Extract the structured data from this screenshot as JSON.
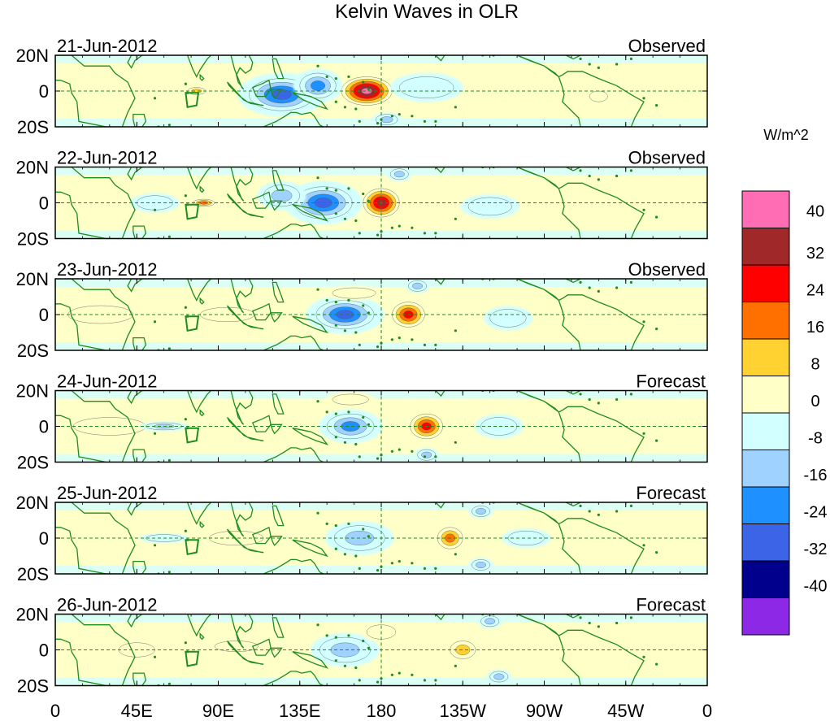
{
  "title": "Kelvin Waves in OLR",
  "units": "W/m^2",
  "panels": [
    {
      "date": "21-Jun-2012",
      "status": "Observed",
      "anomalies": [
        {
          "lon": 172,
          "lat": 0,
          "value": 44,
          "rx": 14,
          "ry": 8
        },
        {
          "lon": 125,
          "lat": -2,
          "value": -28,
          "rx": 18,
          "ry": 9
        },
        {
          "lon": 145,
          "lat": 3,
          "value": -20,
          "rx": 10,
          "ry": 7
        },
        {
          "lon": 78,
          "lat": 0,
          "value": 18,
          "rx": 5,
          "ry": 2
        },
        {
          "lon": 183,
          "lat": -16,
          "value": -18,
          "rx": 6,
          "ry": 3
        },
        {
          "lon": 205,
          "lat": 2,
          "value": -10,
          "rx": 15,
          "ry": 6
        },
        {
          "lon": 300,
          "lat": -3,
          "value": 10,
          "rx": 5,
          "ry": 3
        }
      ]
    },
    {
      "date": "22-Jun-2012",
      "status": "Observed",
      "anomalies": [
        {
          "lon": 180,
          "lat": 0,
          "value": 38,
          "rx": 10,
          "ry": 8
        },
        {
          "lon": 148,
          "lat": 0,
          "value": -34,
          "rx": 16,
          "ry": 9
        },
        {
          "lon": 125,
          "lat": 4,
          "value": -18,
          "rx": 10,
          "ry": 6
        },
        {
          "lon": 82,
          "lat": 0,
          "value": 20,
          "rx": 6,
          "ry": 2
        },
        {
          "lon": 190,
          "lat": 16,
          "value": -18,
          "rx": 5,
          "ry": 3
        },
        {
          "lon": 240,
          "lat": -2,
          "value": -10,
          "rx": 12,
          "ry": 5
        },
        {
          "lon": 55,
          "lat": 0,
          "value": -8,
          "rx": 10,
          "ry": 4
        }
      ]
    },
    {
      "date": "23-Jun-2012",
      "status": "Observed",
      "anomalies": [
        {
          "lon": 195,
          "lat": 0,
          "value": 34,
          "rx": 9,
          "ry": 7
        },
        {
          "lon": 160,
          "lat": 0,
          "value": -30,
          "rx": 16,
          "ry": 8
        },
        {
          "lon": 25,
          "lat": 0,
          "value": 10,
          "rx": 18,
          "ry": 5
        },
        {
          "lon": 95,
          "lat": 0,
          "value": 8,
          "rx": 15,
          "ry": 4
        },
        {
          "lon": 200,
          "lat": 16,
          "value": -18,
          "rx": 5,
          "ry": 3
        },
        {
          "lon": 250,
          "lat": -2,
          "value": -10,
          "rx": 10,
          "ry": 5
        },
        {
          "lon": 165,
          "lat": 12,
          "value": 10,
          "rx": 12,
          "ry": 3
        }
      ]
    },
    {
      "date": "24-Jun-2012",
      "status": "Forecast",
      "anomalies": [
        {
          "lon": 205,
          "lat": 0,
          "value": 28,
          "rx": 9,
          "ry": 7
        },
        {
          "lon": 163,
          "lat": 0,
          "value": -24,
          "rx": 13,
          "ry": 7
        },
        {
          "lon": 30,
          "lat": 0,
          "value": 10,
          "rx": 20,
          "ry": 5
        },
        {
          "lon": 60,
          "lat": 0,
          "value": -12,
          "rx": 10,
          "ry": 2
        },
        {
          "lon": 163,
          "lat": 15,
          "value": 10,
          "rx": 10,
          "ry": 3
        },
        {
          "lon": 205,
          "lat": -16,
          "value": -18,
          "rx": 5,
          "ry": 3
        },
        {
          "lon": 245,
          "lat": 0,
          "value": -10,
          "rx": 10,
          "ry": 5
        }
      ]
    },
    {
      "date": "25-Jun-2012",
      "status": "Forecast",
      "anomalies": [
        {
          "lon": 218,
          "lat": 0,
          "value": 22,
          "rx": 7,
          "ry": 6
        },
        {
          "lon": 168,
          "lat": 0,
          "value": -18,
          "rx": 14,
          "ry": 7
        },
        {
          "lon": 235,
          "lat": 15,
          "value": -18,
          "rx": 5,
          "ry": 3
        },
        {
          "lon": 235,
          "lat": -15,
          "value": -18,
          "rx": 5,
          "ry": 3
        },
        {
          "lon": 100,
          "lat": 0,
          "value": 8,
          "rx": 15,
          "ry": 4
        },
        {
          "lon": 60,
          "lat": 0,
          "value": -10,
          "rx": 10,
          "ry": 2
        },
        {
          "lon": 260,
          "lat": 0,
          "value": -9,
          "rx": 10,
          "ry": 4
        }
      ]
    },
    {
      "date": "26-Jun-2012",
      "status": "Forecast",
      "anomalies": [
        {
          "lon": 225,
          "lat": 0,
          "value": 14,
          "rx": 7,
          "ry": 5
        },
        {
          "lon": 160,
          "lat": 0,
          "value": -14,
          "rx": 14,
          "ry": 7
        },
        {
          "lon": 45,
          "lat": 0,
          "value": 10,
          "rx": 10,
          "ry": 4
        },
        {
          "lon": 240,
          "lat": 16,
          "value": -18,
          "rx": 5,
          "ry": 3
        },
        {
          "lon": 245,
          "lat": -15,
          "value": -18,
          "rx": 5,
          "ry": 3
        },
        {
          "lon": 180,
          "lat": 10,
          "value": 10,
          "rx": 8,
          "ry": 4
        },
        {
          "lon": 100,
          "lat": 2,
          "value": 8,
          "rx": 12,
          "ry": 3
        }
      ]
    }
  ],
  "x_ticks": [
    {
      "lon": 0,
      "label": "0"
    },
    {
      "lon": 45,
      "label": "45E"
    },
    {
      "lon": 90,
      "label": "90E"
    },
    {
      "lon": 135,
      "label": "135E"
    },
    {
      "lon": 180,
      "label": "180"
    },
    {
      "lon": 225,
      "label": "135W"
    },
    {
      "lon": 270,
      "label": "90W"
    },
    {
      "lon": 315,
      "label": "45W"
    },
    {
      "lon": 360,
      "label": "0"
    }
  ],
  "y_ticks": [
    {
      "lat": 20,
      "label": "20N"
    },
    {
      "lat": 0,
      "label": "0"
    },
    {
      "lat": -20,
      "label": "20S"
    }
  ],
  "colorbar": {
    "colors": [
      "#ff6eb4",
      "#a02828",
      "#ff0000",
      "#ff7000",
      "#ffd232",
      "#ffffc8",
      "#d2ffff",
      "#a0d2ff",
      "#1e90ff",
      "#3c64e6",
      "#00008c",
      "#8c28e6"
    ],
    "labels": [
      "40",
      "32",
      "24",
      "16",
      "8",
      "0",
      "-8",
      "-16",
      "-24",
      "-32",
      "-40"
    ]
  },
  "colors": {
    "land": "#1e8c1e",
    "guide": "#1e8c1e"
  }
}
